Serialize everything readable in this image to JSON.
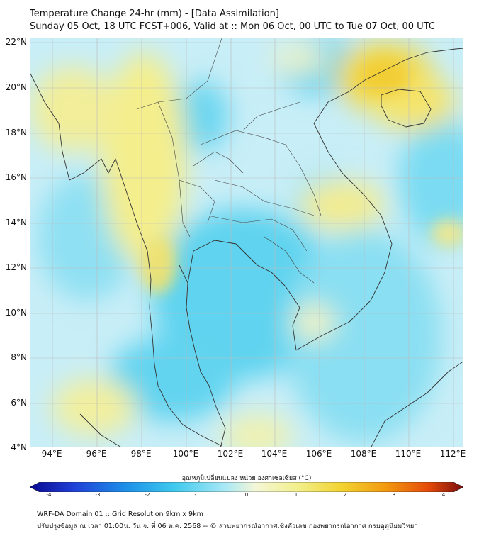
{
  "header": {
    "title_line1": "Temperature Change 24-hr (mm) - [Data Assimilation]",
    "title_line2": "Sunday 05 Oct, 18 UTC FCST+006, Valid at :: Mon 06 Oct, 00 UTC to Tue 07 Oct, 00 UTC"
  },
  "map": {
    "lat_ticks": [
      "22°N",
      "20°N",
      "18°N",
      "16°N",
      "14°N",
      "12°N",
      "10°N",
      "8°N",
      "6°N",
      "4°N"
    ],
    "lon_ticks": [
      "94°E",
      "96°E",
      "98°E",
      "100°E",
      "102°E",
      "104°E",
      "106°E",
      "108°E",
      "110°E",
      "112°E"
    ],
    "lat_range": [
      4,
      22.2
    ],
    "lon_range": [
      93,
      112.5
    ]
  },
  "colorbar": {
    "label": "อุณหภูมิเปลี่ยนแปลง หน่วย องศาเซลเซียส (°C)",
    "ticks": [
      "-4",
      "-3",
      "-2",
      "-1",
      "0",
      "1",
      "2",
      "3",
      "4"
    ],
    "range": [
      -4,
      4
    ],
    "colors": [
      "#08088f",
      "#1f3fd6",
      "#1e8fe8",
      "#3cc8ee",
      "#a8e8f5",
      "#f4f7d8",
      "#f2ef8a",
      "#f2d230",
      "#f29a10",
      "#e44a0a",
      "#7a0c0c"
    ]
  },
  "footer": {
    "line1": "WRF-DA Domain 01 :: Grid Resolution 9km x 9km",
    "line2": "ปรับปรุงข้อมูล ณ เวลา 01:00น. วัน จ. ที่ 06 ต.ค. 2568 -- © ส่วนพยากรณ์อากาศเชิงตัวเลข กองพยากรณ์อากาศ กรมอุตุนิยมวิทยา"
  }
}
